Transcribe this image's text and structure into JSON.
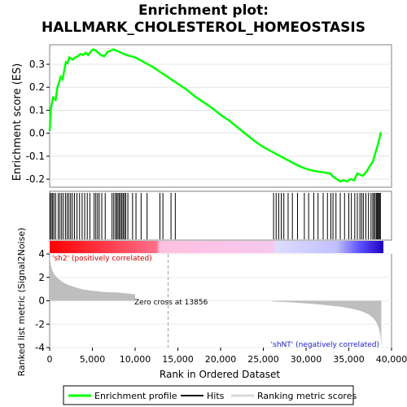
{
  "title_line1": "Enrichment plot:",
  "title_line2": "HALLMARK_CHOLESTEROL_HOMEOSTASIS",
  "chart_data": {
    "type": "line",
    "xlabel": "Rank in Ordered Dataset",
    "xlim": [
      0,
      40000
    ],
    "x_ticks": [
      0,
      5000,
      10000,
      15000,
      20000,
      25000,
      30000,
      35000,
      40000
    ],
    "x_tick_labels": [
      "0",
      "5,000",
      "10,000",
      "15,000",
      "20,000",
      "25,000",
      "30,000",
      "35,000",
      "40,000"
    ],
    "es_panel": {
      "ylabel": "Enrichment score (ES)",
      "ylim": [
        -0.235,
        0.385
      ],
      "y_ticks": [
        -0.2,
        -0.1,
        0.0,
        0.1,
        0.2,
        0.3
      ],
      "y_tick_labels": [
        "-0.2",
        "-0.1",
        "0.0",
        "0.1",
        "0.2",
        "0.3"
      ],
      "series": [
        {
          "name": "Enrichment profile",
          "color": "#00ff00",
          "x": [
            0,
            150,
            250,
            400,
            700,
            900,
            1100,
            1300,
            1500,
            1700,
            1900,
            2100,
            2300,
            2500,
            2700,
            3000,
            3300,
            3600,
            3900,
            4200,
            4500,
            4800,
            5100,
            5400,
            5700,
            6000,
            6400,
            6800,
            7200,
            7500,
            7800,
            8100,
            8400,
            8700,
            9000,
            9500,
            10000,
            11000,
            12000,
            13000,
            14000,
            15000,
            16000,
            17000,
            18000,
            19000,
            20000,
            21000,
            22000,
            23000,
            24000,
            25000,
            26000,
            27000,
            28000,
            29000,
            30000,
            31000,
            32000,
            32800,
            33200,
            33600,
            34000,
            34400,
            34800,
            35200,
            35600,
            36000,
            36300,
            36600,
            36900,
            37200,
            37500,
            37800,
            38000,
            38200,
            38400,
            38600,
            38750
          ],
          "y": [
            0.01,
            0.11,
            0.125,
            0.155,
            0.145,
            0.2,
            0.22,
            0.245,
            0.235,
            0.27,
            0.31,
            0.305,
            0.33,
            0.325,
            0.32,
            0.33,
            0.335,
            0.345,
            0.34,
            0.35,
            0.34,
            0.355,
            0.365,
            0.36,
            0.35,
            0.34,
            0.335,
            0.355,
            0.36,
            0.365,
            0.36,
            0.355,
            0.35,
            0.345,
            0.34,
            0.335,
            0.33,
            0.31,
            0.29,
            0.265,
            0.24,
            0.215,
            0.19,
            0.16,
            0.135,
            0.11,
            0.08,
            0.055,
            0.025,
            -0.005,
            -0.035,
            -0.06,
            -0.08,
            -0.1,
            -0.12,
            -0.14,
            -0.155,
            -0.165,
            -0.17,
            -0.175,
            -0.19,
            -0.2,
            -0.21,
            -0.205,
            -0.21,
            -0.2,
            -0.205,
            -0.175,
            -0.18,
            -0.185,
            -0.175,
            -0.16,
            -0.14,
            -0.125,
            -0.1,
            -0.075,
            -0.05,
            -0.02,
            0.005
          ]
        }
      ]
    },
    "hits": {
      "name": "Hits",
      "x": [
        60,
        200,
        350,
        500,
        700,
        1000,
        1200,
        1400,
        1600,
        1850,
        2050,
        2250,
        2450,
        2650,
        2900,
        3200,
        3500,
        3800,
        4100,
        4400,
        4700,
        5200,
        5400,
        5600,
        5800,
        6100,
        6500,
        7300,
        7500,
        7700,
        7850,
        8000,
        8150,
        8300,
        8450,
        8600,
        8750,
        8900,
        9150,
        9700,
        10100,
        10700,
        11400,
        12900,
        13250,
        14200,
        14700,
        26200,
        26500,
        26800,
        27100,
        27400,
        27900,
        28400,
        29000,
        29800,
        30300,
        30900,
        31400,
        32000,
        32500,
        32900,
        33150,
        33500,
        34000,
        34500,
        35000,
        35300,
        35700,
        36000,
        36300,
        36500,
        36700,
        37000,
        37300,
        37600,
        37800,
        37950,
        38100,
        38250,
        38350,
        38450,
        38550,
        38650,
        38700
      ]
    },
    "rank_bar": {
      "name": "Ranking metric scores",
      "zero_cross": 13856
    },
    "metric_panel": {
      "ylabel": "Ranked list metric (Signal2Noise)",
      "ylim": [
        -4,
        4
      ],
      "y_ticks": [
        -4,
        -2,
        0,
        2,
        4
      ],
      "y_tick_labels": [
        "-4",
        "-2",
        "0",
        "2",
        "4"
      ],
      "series": [
        {
          "name": "Ranked list metric",
          "x": [
            0,
            50,
            150,
            300,
            600,
            1000,
            1500,
            2200,
            3000,
            4000,
            5000,
            6500,
            8000,
            9500,
            10000,
            10001,
            13856,
            26000,
            26001,
            28000,
            30000,
            32000,
            34000,
            35500,
            36500,
            37300,
            37800,
            38200,
            38500,
            38700,
            38800
          ],
          "y": [
            4.0,
            3.4,
            3.0,
            2.6,
            2.2,
            1.9,
            1.6,
            1.35,
            1.15,
            0.95,
            0.85,
            0.75,
            0.7,
            0.6,
            0.55,
            0.0,
            0.0,
            0.0,
            -0.05,
            -0.12,
            -0.22,
            -0.35,
            -0.5,
            -0.7,
            -0.9,
            -1.15,
            -1.45,
            -1.8,
            -2.3,
            -3.0,
            -3.9
          ]
        }
      ]
    },
    "annotations": {
      "pos_label": "'sh2' (positively correlated)",
      "neg_label": "'shNT' (negatively correlated)",
      "zero_cross_label": "Zero cross at 13856"
    },
    "legend": {
      "placement": "bottom",
      "items": [
        {
          "label": "Enrichment profile",
          "color": "#00ff00"
        },
        {
          "label": "Hits",
          "color": "#000000"
        },
        {
          "label": "Ranking metric scores",
          "color": "#d8d8d8"
        }
      ]
    },
    "grid": true
  }
}
